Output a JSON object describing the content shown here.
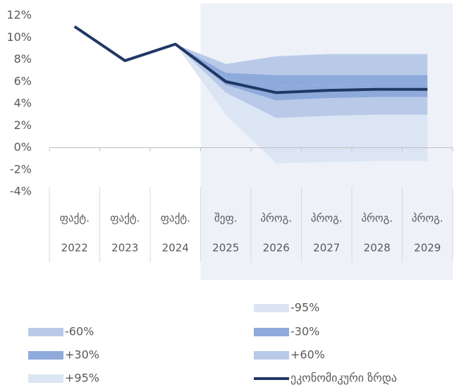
{
  "chart_data": {
    "type": "fan",
    "categories": [
      [
        "ფაქტ.",
        "2022"
      ],
      [
        "ფაქტ.",
        "2023"
      ],
      [
        "ფაქტ.",
        "2024"
      ],
      [
        "შეფ.",
        "2025"
      ],
      [
        "პროგ.",
        "2026"
      ],
      [
        "პროგ.",
        "2027"
      ],
      [
        "პროგ.",
        "2028"
      ],
      [
        "პროგ.",
        "2029"
      ]
    ],
    "ylim": [
      -4,
      12
    ],
    "yticks": [
      {
        "value": -4,
        "label": "-4%"
      },
      {
        "value": -2,
        "label": "-2%"
      },
      {
        "value": 0,
        "label": "0%"
      },
      {
        "value": 2,
        "label": "2%"
      },
      {
        "value": 4,
        "label": "4%"
      },
      {
        "value": 6,
        "label": "6%"
      },
      {
        "value": 8,
        "label": "8%"
      },
      {
        "value": 10,
        "label": "10%"
      },
      {
        "value": 12,
        "label": "12%"
      }
    ],
    "series": [
      {
        "name": "-95%",
        "color": "#dce5f3",
        "values": [
          null,
          null,
          9.4,
          3.0,
          -1.4,
          -1.3,
          -1.2,
          -1.2
        ]
      },
      {
        "name": "-60%",
        "color": "#b8cae8",
        "values": [
          null,
          null,
          9.4,
          5.0,
          2.7,
          2.9,
          3.0,
          3.0
        ]
      },
      {
        "name": "-30%",
        "color": "#8eaadb",
        "values": [
          null,
          null,
          9.4,
          5.7,
          4.3,
          4.5,
          4.6,
          4.6
        ]
      },
      {
        "name": "+30%",
        "color": "#8eaadb",
        "values": [
          null,
          null,
          9.4,
          6.3,
          5.6,
          5.7,
          5.8,
          5.8
        ]
      },
      {
        "name": "+60%",
        "color": "#b8cae8",
        "values": [
          null,
          null,
          9.4,
          6.8,
          6.6,
          6.6,
          6.6,
          6.6
        ]
      },
      {
        "name": "+95%",
        "color": "#dce5f3",
        "values": [
          null,
          null,
          9.4,
          7.6,
          8.3,
          8.5,
          8.5,
          8.5
        ]
      },
      {
        "name": "ეკონომიკური ზრდა",
        "color": "#203864",
        "values": [
          11.0,
          7.9,
          9.4,
          6.0,
          5.0,
          5.2,
          5.3,
          5.3
        ]
      }
    ]
  }
}
